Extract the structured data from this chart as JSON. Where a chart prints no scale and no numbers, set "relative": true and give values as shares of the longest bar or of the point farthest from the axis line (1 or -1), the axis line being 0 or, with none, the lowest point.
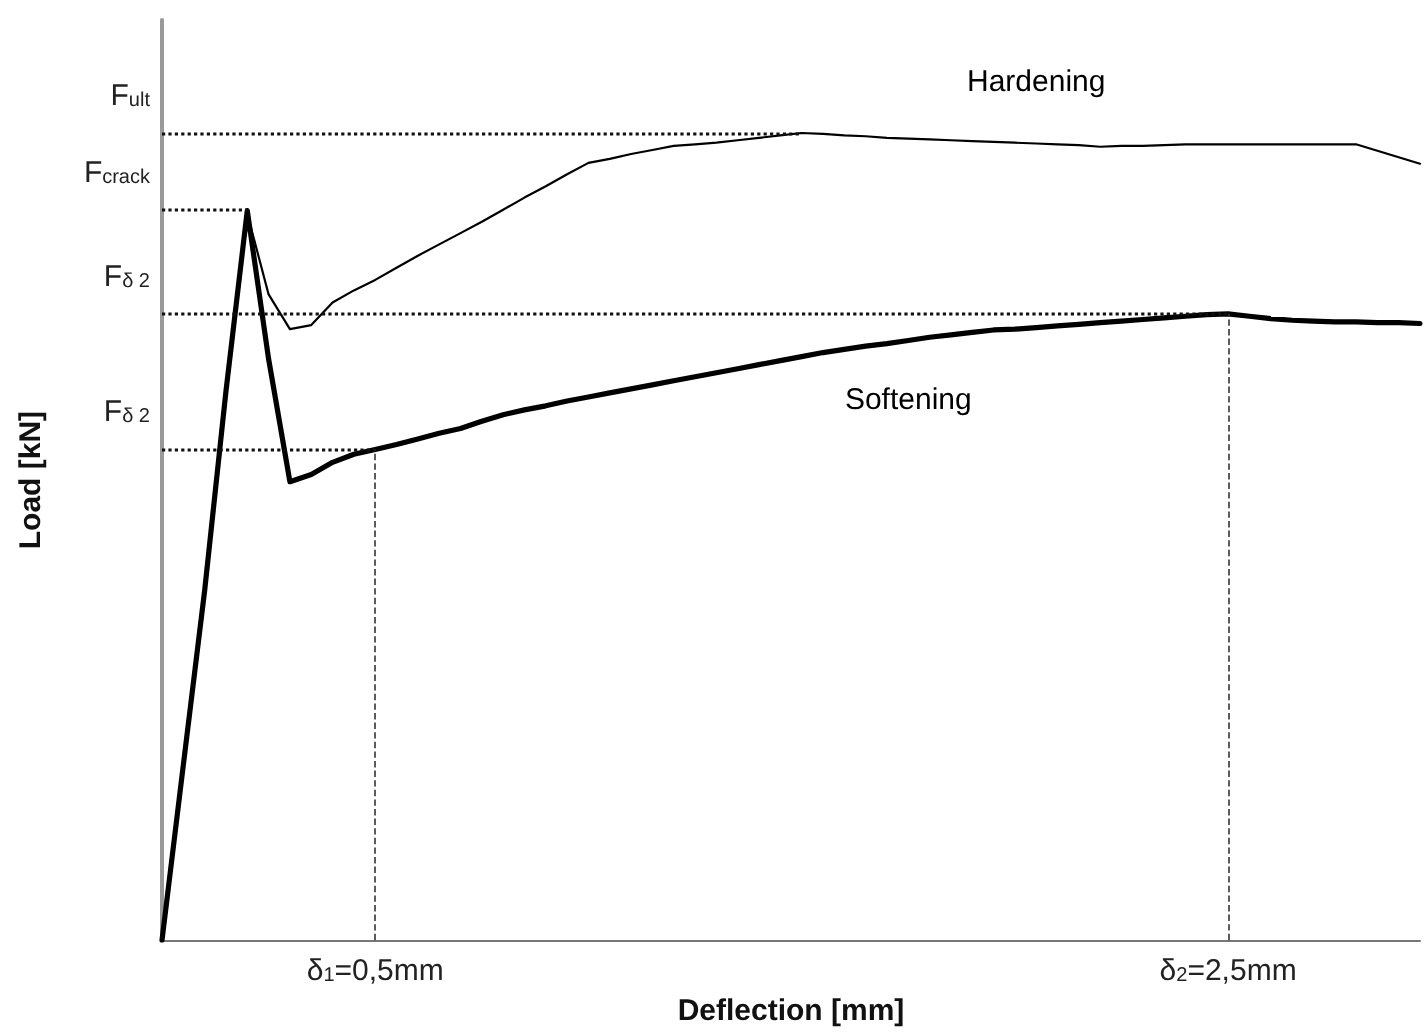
{
  "chart_data": {
    "type": "line",
    "relative": true,
    "xlabel": "Deflection [mm]",
    "ylabel": "Load [kN]",
    "categories": [
      null,
      null,
      null,
      null,
      null,
      null,
      null,
      null,
      null,
      null,
      "δ$_{1}$=0,5mm",
      null,
      null,
      null,
      null,
      null,
      null,
      null,
      null,
      null,
      null,
      null,
      null,
      null,
      null,
      null,
      null,
      null,
      null,
      null,
      null,
      null,
      null,
      null,
      null,
      null,
      null,
      null,
      null,
      null,
      null,
      null,
      null,
      null,
      null,
      null,
      null,
      null,
      null,
      null,
      "δ$_{2}$=2,5mm",
      null,
      null,
      null,
      null,
      null,
      null,
      null,
      null,
      null
    ],
    "tick_labels": "x",
    "grid": false,
    "marker": "none",
    "line_style": "solid",
    "series": [
      {
        "name": "Hardening",
        "color": "#000000",
        "values": [
          0,
          0.217,
          0.433,
          0.68,
          0.9,
          0.8,
          0.757,
          0.762,
          0.79,
          0.805,
          0.818,
          0.833,
          0.848,
          0.862,
          0.876,
          0.89,
          0.905,
          0.92,
          0.934,
          0.949,
          0.963,
          0.968,
          0.974,
          0.979,
          0.984,
          0.986,
          0.988,
          0.991,
          0.994,
          0.997,
          1.0,
          0.999,
          0.997,
          0.996,
          0.994,
          0.993,
          0.992,
          0.991,
          0.99,
          0.989,
          0.988,
          0.987,
          0.986,
          0.985,
          0.983,
          0.984,
          0.984,
          0.985,
          0.986,
          0.986,
          0.986,
          0.986,
          0.986,
          0.986,
          0.986,
          0.986,
          0.986,
          0.978,
          0.97,
          0.962
        ]
      },
      {
        "name": "Softening",
        "color": "#000000",
        "values": [
          0,
          0.217,
          0.433,
          0.68,
          0.904,
          0.72,
          0.568,
          0.577,
          0.592,
          0.602,
          0.608,
          0.614,
          0.621,
          0.628,
          0.634,
          0.643,
          0.651,
          0.657,
          0.662,
          0.668,
          0.673,
          0.678,
          0.683,
          0.688,
          0.693,
          0.698,
          0.703,
          0.708,
          0.713,
          0.718,
          0.723,
          0.728,
          0.732,
          0.736,
          0.739,
          0.743,
          0.747,
          0.75,
          0.753,
          0.756,
          0.757,
          0.759,
          0.761,
          0.763,
          0.765,
          0.767,
          0.769,
          0.771,
          0.773,
          0.775,
          0.776,
          0.773,
          0.77,
          0.768,
          0.767,
          0.766,
          0.766,
          0.765,
          0.765,
          0.764
        ]
      }
    ],
    "ref_lines": [
      {
        "axis": "y",
        "value": 1.0,
        "label": "F$_{ult}$",
        "line_style": "dotted"
      },
      {
        "axis": "y",
        "value": 0.904,
        "label": "F$_{crack}$",
        "line_style": "dotted"
      },
      {
        "axis": "y",
        "value": 0.776,
        "label": "F$_{δ 2}$",
        "line_style": "dotted"
      },
      {
        "axis": "y",
        "value": 0.608,
        "label": "F$_{δ 2}$",
        "line_style": "dotted"
      },
      {
        "axis": "x",
        "value": "δ$_{1}$=0,5mm",
        "line_style": "dashed"
      },
      {
        "axis": "x",
        "value": "δ$_{2}$=2,5mm",
        "line_style": "dashed"
      }
    ]
  }
}
